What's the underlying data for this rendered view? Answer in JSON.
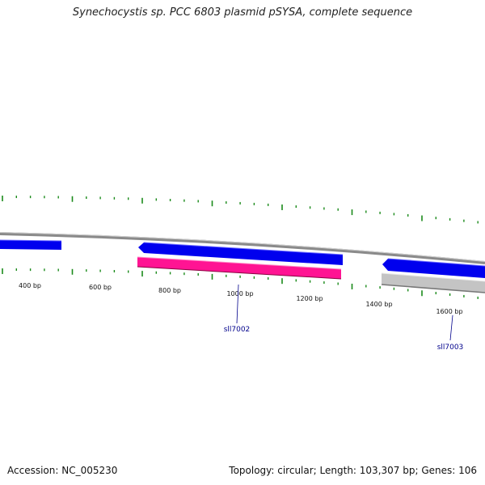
{
  "title": "Synechocystis sp. PCC 6803 plasmid pSYSA, complete sequence",
  "footer": {
    "accession": "Accession: NC_005230",
    "summary": "Topology: circular; Length: 103,307 bp; Genes: 106"
  },
  "colors": {
    "backbone": "#8a8a8a",
    "tick": "#1a8a1a",
    "gene_forward": "#0000ee",
    "gene_reverse_pink": "#ff1493",
    "gene_gray": "#c4c4c4",
    "label": "#00008b"
  },
  "ruler": {
    "labels": [
      "400 bp",
      "600 bp",
      "800 bp",
      "1000 bp",
      "1200 bp",
      "1400 bp",
      "1600 bp"
    ]
  },
  "genes": [
    {
      "name": "",
      "color": "blue",
      "strand": "reverse"
    },
    {
      "name": "",
      "color": "blue",
      "strand": "reverse"
    },
    {
      "name": "sll7002",
      "color": "pink",
      "strand": "forward"
    },
    {
      "name": "",
      "color": "blue",
      "strand": "reverse"
    },
    {
      "name": "sll7003",
      "color": "gray",
      "strand": "forward"
    }
  ]
}
